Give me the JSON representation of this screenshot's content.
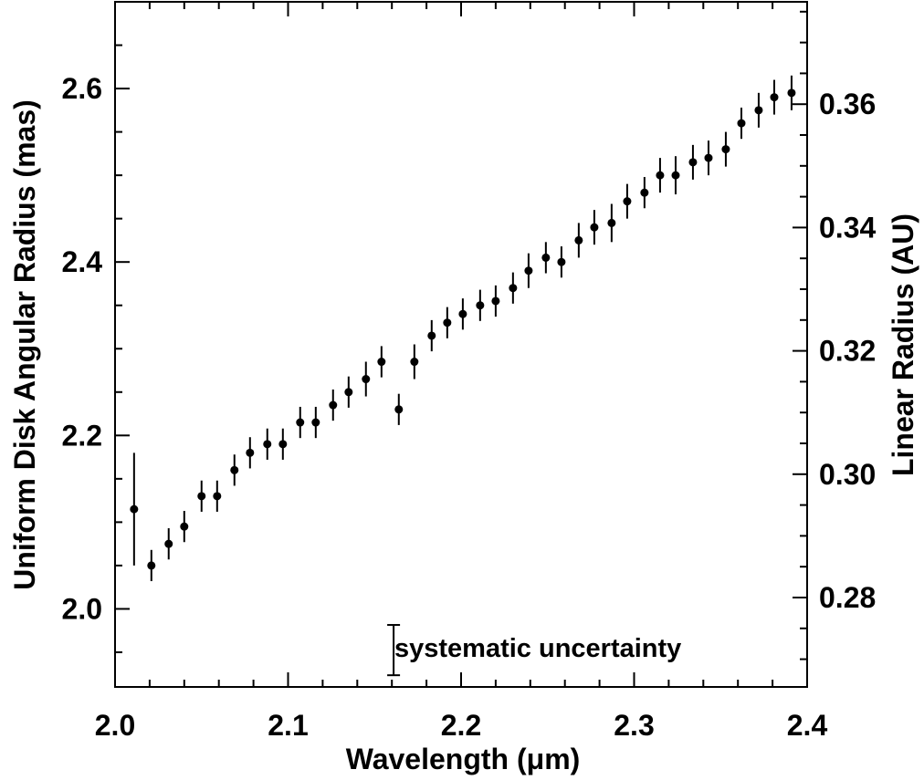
{
  "chart_data": {
    "type": "scatter",
    "xlabel": "Wavelength (μm)",
    "ylabel": "Uniform Disk Angular Radius (mas)",
    "y2label": "Linear Radius (AU)",
    "xlim": [
      2.0,
      2.4
    ],
    "ylim": [
      1.91,
      2.7
    ],
    "y2lim": [
      0.2655,
      0.3766
    ],
    "x_ticks": [
      "2.0",
      "2.1",
      "2.2",
      "2.3",
      "2.4"
    ],
    "y_ticks": [
      "2.0",
      "2.2",
      "2.4",
      "2.6"
    ],
    "y2_ticks": [
      "0.28",
      "0.30",
      "0.32",
      "0.34",
      "0.36"
    ],
    "grid": false,
    "annotation": "systematic uncertainty",
    "systematic_uncertainty": {
      "x": 2.161,
      "y_low": 1.9235,
      "y_high": 1.9815
    },
    "series": [
      {
        "x": [
          2.011,
          2.021,
          2.031,
          2.04,
          2.05,
          2.059,
          2.069,
          2.078,
          2.088,
          2.097,
          2.107,
          2.116,
          2.126,
          2.135,
          2.145,
          2.154,
          2.164,
          2.173,
          2.183,
          2.192,
          2.201,
          2.211,
          2.22,
          2.23,
          2.239,
          2.249,
          2.258,
          2.268,
          2.277,
          2.287,
          2.296,
          2.306,
          2.315,
          2.324,
          2.334,
          2.343,
          2.353,
          2.362,
          2.372,
          2.381,
          2.391
        ],
        "y": [
          2.115,
          2.05,
          2.075,
          2.095,
          2.13,
          2.13,
          2.16,
          2.18,
          2.19,
          2.19,
          2.215,
          2.215,
          2.235,
          2.25,
          2.265,
          2.285,
          2.23,
          2.285,
          2.315,
          2.33,
          2.34,
          2.35,
          2.355,
          2.37,
          2.39,
          2.405,
          2.4,
          2.425,
          2.44,
          2.445,
          2.47,
          2.48,
          2.5,
          2.5,
          2.515,
          2.52,
          2.53,
          2.56,
          2.575,
          2.59,
          2.595
        ],
        "yerr": [
          0.065,
          0.018,
          0.018,
          0.018,
          0.018,
          0.018,
          0.018,
          0.018,
          0.018,
          0.018,
          0.018,
          0.018,
          0.018,
          0.018,
          0.02,
          0.018,
          0.018,
          0.02,
          0.018,
          0.018,
          0.018,
          0.018,
          0.018,
          0.018,
          0.02,
          0.018,
          0.018,
          0.02,
          0.02,
          0.022,
          0.02,
          0.018,
          0.02,
          0.022,
          0.02,
          0.02,
          0.02,
          0.018,
          0.02,
          0.02,
          0.02
        ]
      }
    ]
  }
}
